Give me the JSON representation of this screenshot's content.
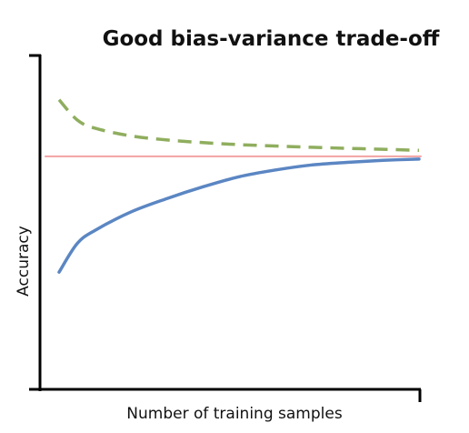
{
  "chart_data": {
    "type": "line",
    "title": "Good bias-variance trade-off",
    "xlabel": "Number of training samples",
    "ylabel": "Accuracy",
    "x_ticks_labeled": false,
    "y_ticks_labeled": false,
    "grid": false,
    "legend": "none",
    "series": [
      {
        "role": "training-accuracy",
        "color": "#8fae5e",
        "style": "dashed",
        "x": [
          0.0,
          0.05,
          0.1,
          0.2,
          0.3,
          0.4,
          0.5,
          0.6,
          0.7,
          0.8,
          0.9,
          1.0
        ],
        "y": [
          0.865,
          0.805,
          0.78,
          0.757,
          0.745,
          0.737,
          0.731,
          0.727,
          0.723,
          0.72,
          0.717,
          0.714
        ]
      },
      {
        "role": "validation-accuracy",
        "color": "#5b86c3",
        "style": "solid",
        "x": [
          0.0,
          0.05,
          0.1,
          0.2,
          0.3,
          0.4,
          0.5,
          0.6,
          0.7,
          0.8,
          0.9,
          1.0
        ],
        "y": [
          0.35,
          0.435,
          0.475,
          0.53,
          0.57,
          0.605,
          0.635,
          0.655,
          0.67,
          0.678,
          0.684,
          0.688
        ]
      },
      {
        "role": "desired-accuracy",
        "color": "#f2a3a3",
        "style": "solid",
        "x": [
          0.0,
          1.0
        ],
        "y": [
          0.696,
          0.696
        ]
      }
    ]
  }
}
